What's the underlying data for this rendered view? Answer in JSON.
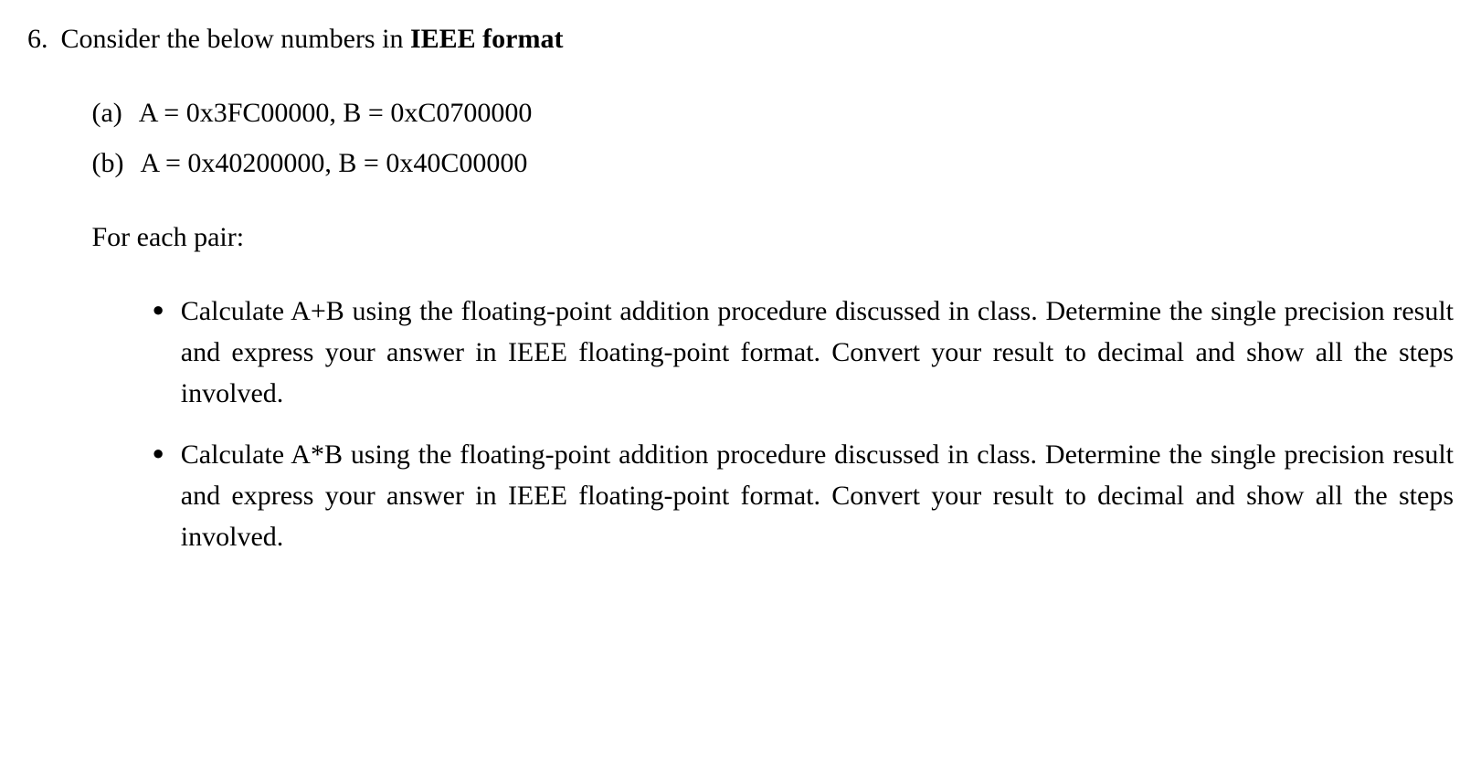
{
  "problem": {
    "number": "6.",
    "intro_prefix": "Consider the below numbers in ",
    "intro_bold": "IEEE format",
    "subitems": [
      {
        "marker": "(a)",
        "text": "A = 0x3FC00000, B = 0xC0700000"
      },
      {
        "marker": "(b)",
        "text": "A = 0x40200000, B = 0x40C00000"
      }
    ],
    "for_each": "For each pair:",
    "bullets": [
      {
        "text": "Calculate A+B using the floating-point addition procedure discussed in class. Determine the single precision result and express your answer in IEEE floating-point format. Convert your result to decimal and show all the steps involved."
      },
      {
        "text": "Calculate A*B using the floating-point addition procedure discussed in class. Determine the single precision result and express your answer in IEEE floating-point format. Convert your result to decimal and show all the steps involved."
      }
    ]
  }
}
